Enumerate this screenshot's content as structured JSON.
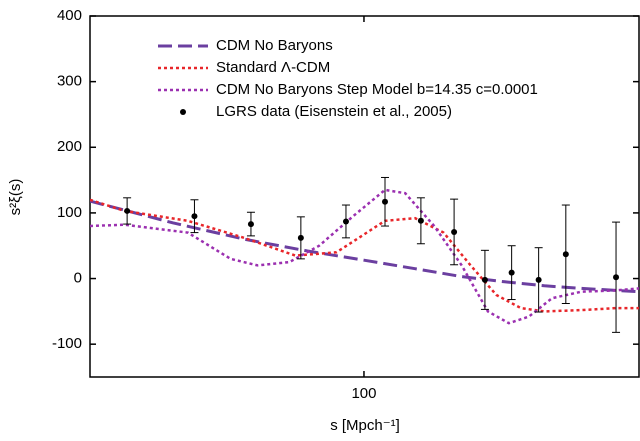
{
  "chart_data": {
    "type": "line",
    "xlabel": "s [Mpch⁻¹]",
    "ylabel": "s²ξ(s)",
    "xscale": "log",
    "xlim": [
      60,
      167
    ],
    "xticks": [
      100
    ],
    "ylim": [
      -150,
      400
    ],
    "yticks": [
      -100,
      0,
      100,
      200,
      300,
      400
    ],
    "legend": "upper left",
    "series": [
      {
        "name": "CDM No Baryons",
        "color": "#6b3fa0",
        "style": "dashed",
        "x": [
          60,
          70,
          80,
          90,
          100,
          110,
          120,
          130,
          140,
          150,
          167
        ],
        "values": [
          118,
          85,
          60,
          42,
          28,
          15,
          3,
          -5,
          -11,
          -15,
          -20
        ]
      },
      {
        "name": "Standard Λ-CDM",
        "color": "#e8262a",
        "style": "dotted",
        "x": [
          60,
          64,
          72,
          80,
          88,
          95,
          104,
          110,
          116,
          122,
          128,
          134,
          140,
          150,
          160,
          167
        ],
        "values": [
          120,
          103,
          88,
          62,
          35,
          40,
          88,
          92,
          70,
          20,
          -25,
          -45,
          -50,
          -48,
          -45,
          -45
        ]
      },
      {
        "name": "CDM No Baryons Step Model b=14.35 c=0.0001",
        "color": "#9b30b0",
        "style": "dotted",
        "x": [
          60,
          64,
          72,
          78,
          82,
          87,
          92,
          98,
          104,
          108,
          114,
          120,
          126,
          131,
          136,
          142,
          150,
          160,
          167
        ],
        "values": [
          80,
          82,
          70,
          30,
          20,
          25,
          50,
          95,
          135,
          130,
          80,
          20,
          -50,
          -68,
          -58,
          -30,
          -20,
          -18,
          -15
        ]
      },
      {
        "name": "LGRS data (Eisenstein et al., 2005)",
        "color": "#000000",
        "style": "points",
        "x": [
          64.3,
          72.9,
          81.0,
          88.9,
          96.7,
          104.0,
          111.2,
          118.3,
          125.3,
          131.7,
          138.5,
          145.7,
          160.0
        ],
        "values": [
          103,
          95,
          83,
          62,
          87,
          117,
          88,
          71,
          -2,
          9,
          -2,
          37,
          2
        ],
        "errors": [
          20,
          25,
          18,
          32,
          25,
          37,
          35,
          50,
          45,
          41,
          49,
          75,
          84
        ]
      }
    ]
  }
}
